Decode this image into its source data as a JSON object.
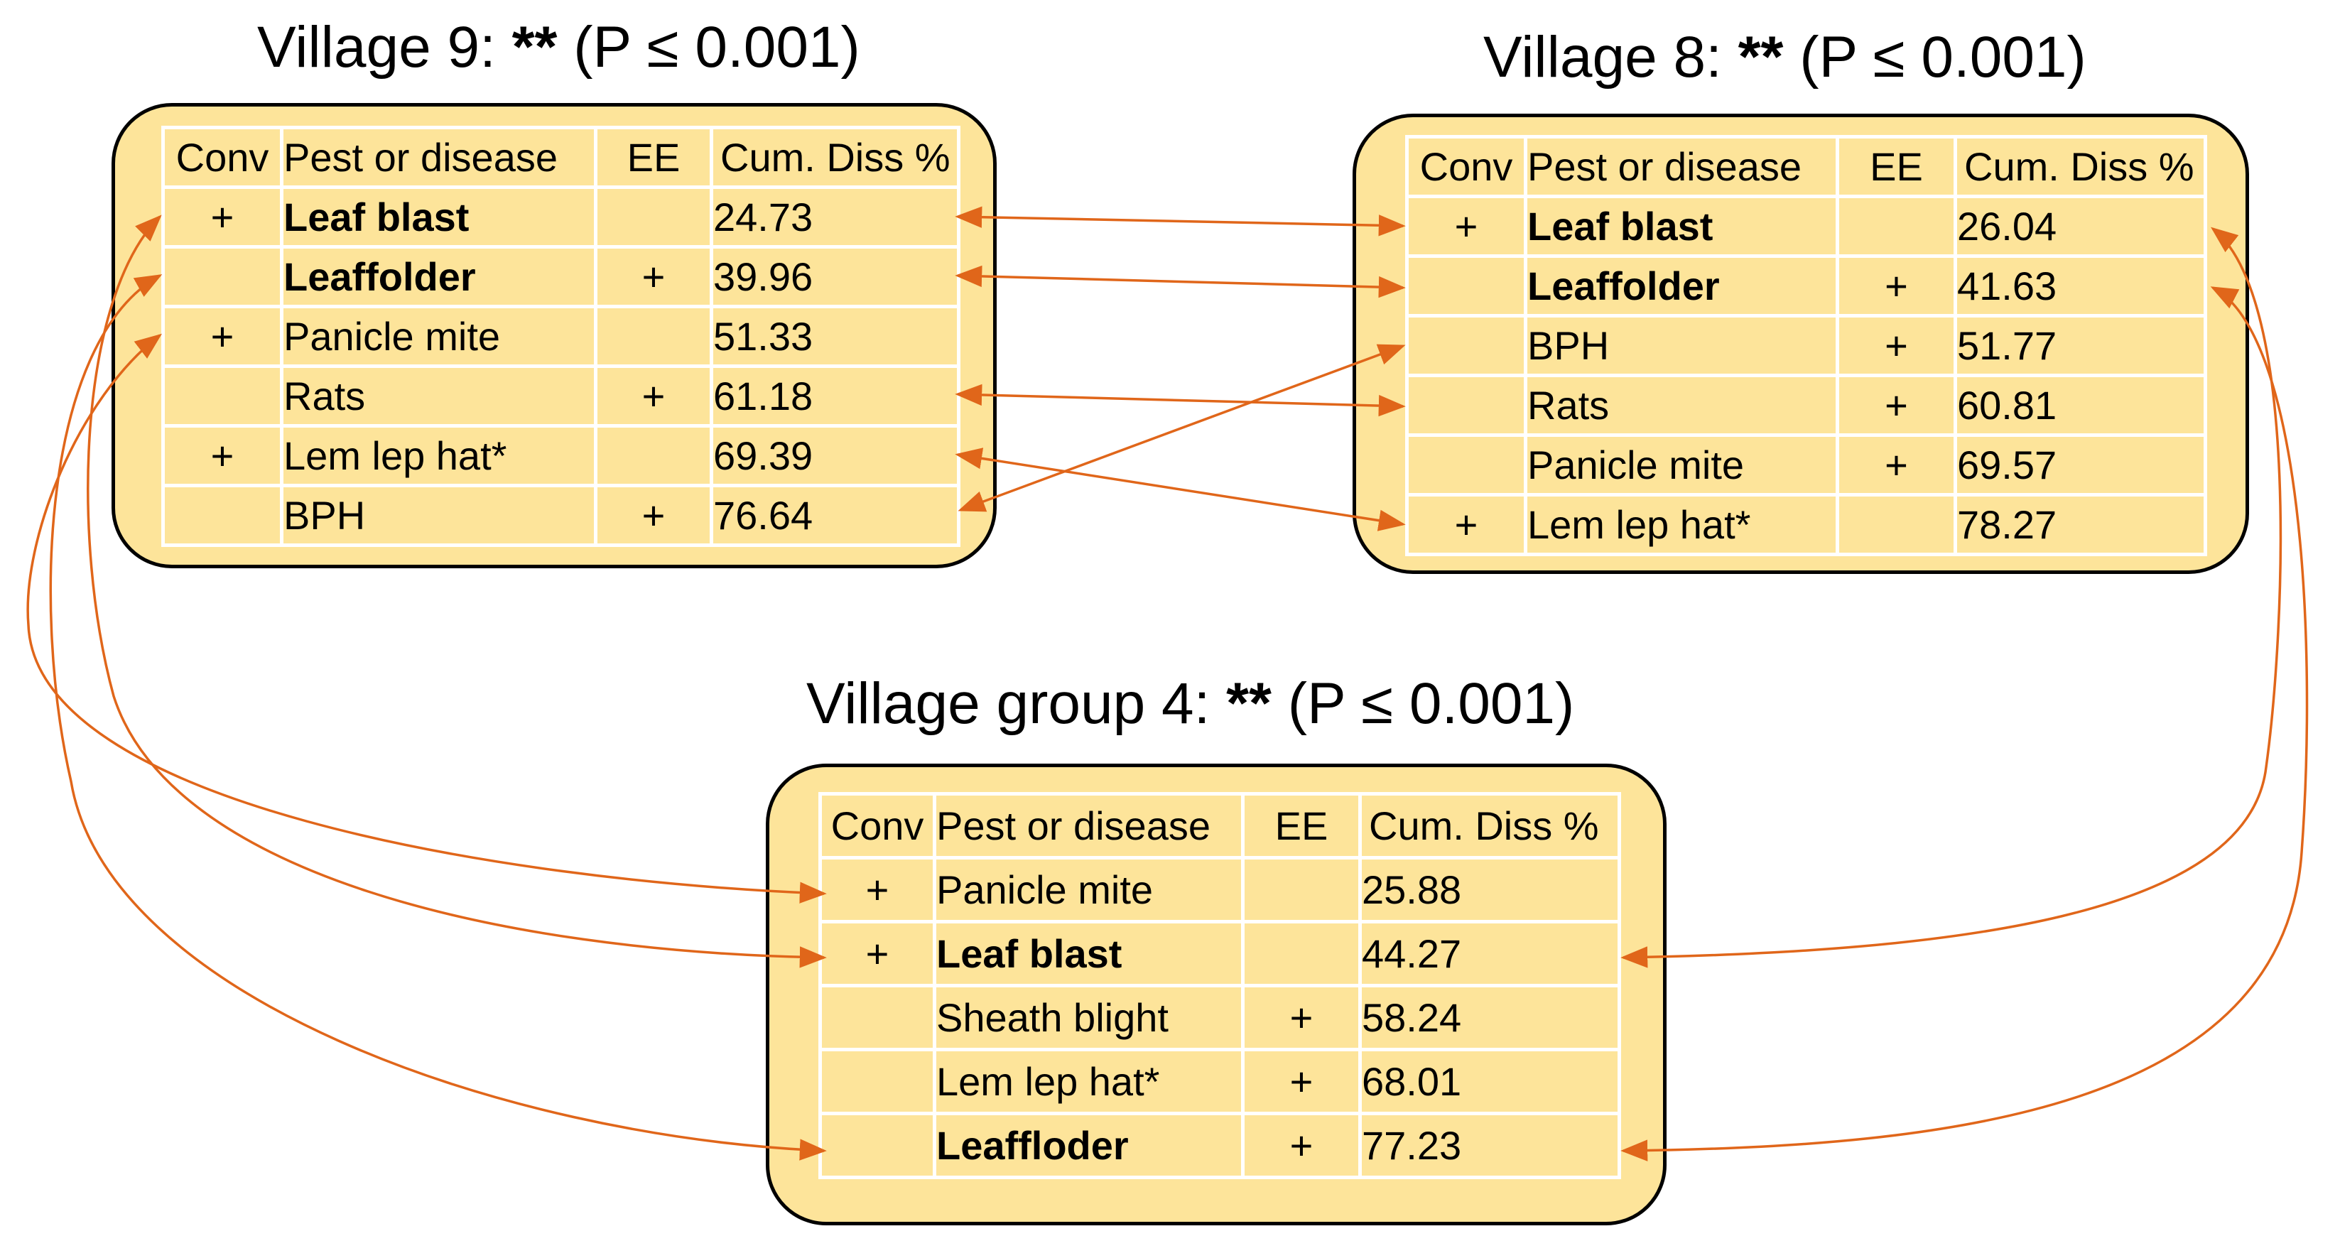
{
  "columns": [
    "Conv",
    "Pest or disease",
    "EE",
    "Cum. Diss %"
  ],
  "arrow_color": "#e0661a",
  "box_fill": "#fde49a",
  "panels": {
    "v9": {
      "title_prefix": "Village 9: ",
      "stars": "**",
      "title_suffix": " (P ≤ 0.001)",
      "rows": [
        {
          "conv": "+",
          "pest": "Leaf blast",
          "ee": "",
          "diss": "24.73",
          "bold": true
        },
        {
          "conv": "",
          "pest": "Leaffolder",
          "ee": "+",
          "diss": "39.96",
          "bold": true
        },
        {
          "conv": "+",
          "pest": "Panicle mite",
          "ee": "",
          "diss": "51.33",
          "bold": false
        },
        {
          "conv": "",
          "pest": "Rats",
          "ee": "+",
          "diss": "61.18",
          "bold": false
        },
        {
          "conv": "+",
          "pest": "Lem lep hat*",
          "ee": "",
          "diss": "69.39",
          "bold": false
        },
        {
          "conv": "",
          "pest": "BPH",
          "ee": "+",
          "diss": "76.64",
          "bold": false
        }
      ]
    },
    "v8": {
      "title_prefix": "Village 8: ",
      "stars": "**",
      "title_suffix": " (P ≤ 0.001)",
      "rows": [
        {
          "conv": "+",
          "pest": "Leaf blast",
          "ee": "",
          "diss": "26.04",
          "bold": true
        },
        {
          "conv": "",
          "pest": "Leaffolder",
          "ee": "+",
          "diss": "41.63",
          "bold": true
        },
        {
          "conv": "",
          "pest": "BPH",
          "ee": "+",
          "diss": "51.77",
          "bold": false
        },
        {
          "conv": "",
          "pest": "Rats",
          "ee": "+",
          "diss": "60.81",
          "bold": false
        },
        {
          "conv": "",
          "pest": "Panicle mite",
          "ee": "+",
          "diss": "69.57",
          "bold": false
        },
        {
          "conv": "+",
          "pest": "Lem lep hat*",
          "ee": "",
          "diss": "78.27",
          "bold": false
        }
      ]
    },
    "vg4": {
      "title_prefix": "Village group 4: ",
      "stars": "**",
      "title_suffix": " (P ≤ 0.001)",
      "rows": [
        {
          "conv": "+",
          "pest": "Panicle mite",
          "ee": "",
          "diss": "25.88",
          "bold": false
        },
        {
          "conv": "+",
          "pest": "Leaf blast",
          "ee": "",
          "diss": "44.27",
          "bold": true
        },
        {
          "conv": "",
          "pest": "Sheath blight",
          "ee": "+",
          "diss": "58.24",
          "bold": false
        },
        {
          "conv": "",
          "pest": "Lem lep hat*",
          "ee": "+",
          "diss": "68.01",
          "bold": false
        },
        {
          "conv": "",
          "pest": "Leaffloder",
          "ee": "+",
          "diss": "77.23",
          "bold": true
        }
      ]
    }
  }
}
